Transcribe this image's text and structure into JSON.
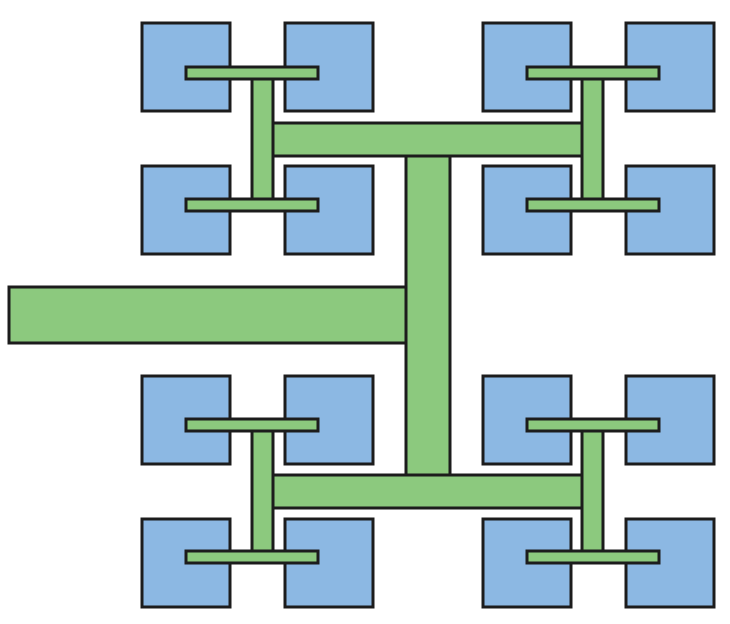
{
  "diagram": {
    "colors": {
      "background": "#ffffff",
      "pad_fill": "#8cb8e3",
      "wire_fill": "#8cc97e",
      "outline": "#1c1c1c"
    },
    "pads": [
      {
        "name": "pad-top-left-a"
      },
      {
        "name": "pad-top-left-b"
      },
      {
        "name": "pad-top-left-c"
      },
      {
        "name": "pad-top-left-d"
      },
      {
        "name": "pad-top-right-a"
      },
      {
        "name": "pad-top-right-b"
      },
      {
        "name": "pad-top-right-c"
      },
      {
        "name": "pad-top-right-d"
      },
      {
        "name": "pad-bottom-left-a"
      },
      {
        "name": "pad-bottom-left-b"
      },
      {
        "name": "pad-bottom-left-c"
      },
      {
        "name": "pad-bottom-left-d"
      },
      {
        "name": "pad-bottom-right-a"
      },
      {
        "name": "pad-bottom-right-b"
      },
      {
        "name": "pad-bottom-right-c"
      },
      {
        "name": "pad-bottom-right-d"
      }
    ],
    "wires": [
      {
        "name": "input-trunk"
      },
      {
        "name": "main-vertical-trunk"
      },
      {
        "name": "top-horizontal-branch"
      },
      {
        "name": "bottom-horizontal-branch"
      },
      {
        "name": "top-left-stem"
      },
      {
        "name": "top-right-stem"
      },
      {
        "name": "bottom-left-stem"
      },
      {
        "name": "bottom-right-stem"
      },
      {
        "name": "top-left-upper-leaf"
      },
      {
        "name": "top-left-lower-leaf"
      },
      {
        "name": "top-right-upper-leaf"
      },
      {
        "name": "top-right-lower-leaf"
      },
      {
        "name": "bottom-left-upper-leaf"
      },
      {
        "name": "bottom-left-lower-leaf"
      },
      {
        "name": "bottom-right-upper-leaf"
      },
      {
        "name": "bottom-right-lower-leaf"
      }
    ]
  }
}
